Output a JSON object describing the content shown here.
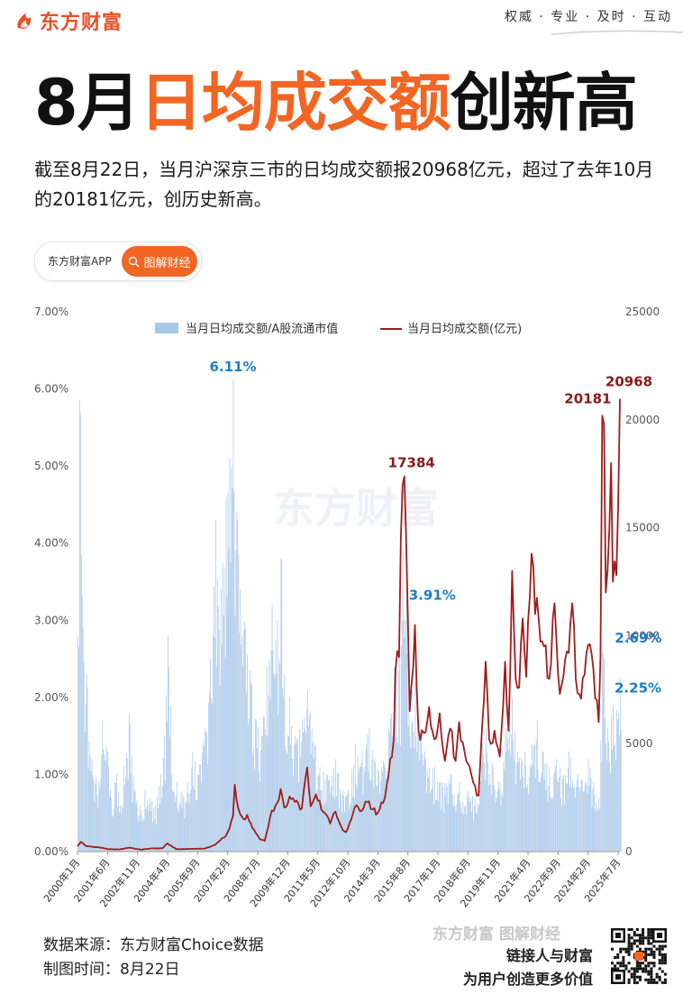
{
  "brand": {
    "name": "东方财富",
    "logo_icon": "flame-logo-icon",
    "color": "#e8502b"
  },
  "slogan": "权威 · 专业 · 及时 · 互动",
  "headline": {
    "part1": "8月",
    "part2": "日均成交额",
    "part3": "创新高",
    "accent_color": "#f26522"
  },
  "intro": "截至8月22日，当月沪深京三市的日均成交额报20968亿元，超过了去年10月的20181亿元，创历史新高。",
  "pill": {
    "label": "东方财富APP",
    "button_label": "图解财经",
    "button_icon": "search-icon"
  },
  "chart_data": {
    "type": "bar+line",
    "legend_placement": "top-center",
    "watermark": "东方财富",
    "y_left": {
      "ticks": [
        "0.00%",
        "1.00%",
        "2.00%",
        "3.00%",
        "4.00%",
        "5.00%",
        "6.00%",
        "7.00%"
      ],
      "range": [
        0,
        7
      ]
    },
    "y_right": {
      "ticks": [
        "0",
        "5000",
        "10000",
        "15000",
        "20000",
        "25000"
      ],
      "range": [
        0,
        25000
      ]
    },
    "x_start": "2000-01",
    "x_end": "2025-08",
    "x_ticks": [
      "2000年1月",
      "2001年6月",
      "2002年11月",
      "2004年4月",
      "2005年9月",
      "2007年2月",
      "2008年7月",
      "2009年12月",
      "2011年5月",
      "2012年10月",
      "2014年3月",
      "2015年8月",
      "2017年1月",
      "2018年6月",
      "2019年11月",
      "2021年4月",
      "2022年9月",
      "2024年2月",
      "2025年7月"
    ],
    "series": [
      {
        "name": "当月日均成交额/A股流通市值",
        "type": "bar",
        "color": "#a9c8e8",
        "anchors": [
          [
            "2000-01",
            2.8
          ],
          [
            "2000-02",
            5.85
          ],
          [
            "2000-03",
            3.85
          ],
          [
            "2000-04",
            2.9
          ],
          [
            "2000-06",
            2.3
          ],
          [
            "2000-09",
            1.2
          ],
          [
            "2001-01",
            0.9
          ],
          [
            "2001-03",
            1.7
          ],
          [
            "2001-06",
            1.3
          ],
          [
            "2001-08",
            0.7
          ],
          [
            "2001-11",
            1.0
          ],
          [
            "2002-01",
            0.6
          ],
          [
            "2002-03",
            1.1
          ],
          [
            "2002-06",
            1.8
          ],
          [
            "2002-09",
            0.8
          ],
          [
            "2002-12",
            0.6
          ],
          [
            "2003-03",
            0.8
          ],
          [
            "2003-06",
            0.7
          ],
          [
            "2003-09",
            0.6
          ],
          [
            "2003-12",
            1.0
          ],
          [
            "2004-02",
            1.5
          ],
          [
            "2004-04",
            2.8
          ],
          [
            "2004-06",
            1.0
          ],
          [
            "2004-09",
            0.9
          ],
          [
            "2005-01",
            0.7
          ],
          [
            "2005-06",
            1.3
          ],
          [
            "2005-09",
            1.0
          ],
          [
            "2006-01",
            1.6
          ],
          [
            "2006-04",
            2.5
          ],
          [
            "2006-07",
            4.3
          ],
          [
            "2006-10",
            3.4
          ],
          [
            "2007-01",
            4.6
          ],
          [
            "2007-03",
            5.1
          ],
          [
            "2007-05",
            6.11
          ],
          [
            "2007-07",
            4.4
          ],
          [
            "2007-09",
            3.4
          ],
          [
            "2007-12",
            2.9
          ],
          [
            "2008-03",
            2.2
          ],
          [
            "2008-06",
            1.7
          ],
          [
            "2008-09",
            1.5
          ],
          [
            "2008-12",
            2.4
          ],
          [
            "2009-03",
            3.2
          ],
          [
            "2009-06",
            3.0
          ],
          [
            "2009-08",
            3.8
          ],
          [
            "2009-10",
            2.3
          ],
          [
            "2010-01",
            2.0
          ],
          [
            "2010-04",
            1.5
          ],
          [
            "2010-08",
            1.7
          ],
          [
            "2010-11",
            2.1
          ],
          [
            "2011-03",
            1.4
          ],
          [
            "2011-06",
            1.1
          ],
          [
            "2011-10",
            1.0
          ],
          [
            "2012-03",
            1.2
          ],
          [
            "2012-07",
            0.8
          ],
          [
            "2012-10",
            0.8
          ],
          [
            "2013-02",
            1.4
          ],
          [
            "2013-06",
            1.3
          ],
          [
            "2013-10",
            1.6
          ],
          [
            "2014-01",
            1.2
          ],
          [
            "2014-05",
            1.1
          ],
          [
            "2014-09",
            1.6
          ],
          [
            "2014-12",
            2.4
          ],
          [
            "2015-03",
            2.5
          ],
          [
            "2015-05",
            3.91
          ],
          [
            "2015-07",
            3.3
          ],
          [
            "2015-09",
            1.5
          ],
          [
            "2015-12",
            2.2
          ],
          [
            "2016-03",
            1.6
          ],
          [
            "2016-06",
            1.2
          ],
          [
            "2016-11",
            1.1
          ],
          [
            "2017-03",
            0.9
          ],
          [
            "2017-08",
            1.0
          ],
          [
            "2018-01",
            0.9
          ],
          [
            "2018-06",
            0.8
          ],
          [
            "2018-10",
            0.7
          ],
          [
            "2019-02",
            1.4
          ],
          [
            "2019-04",
            1.6
          ],
          [
            "2019-08",
            1.1
          ],
          [
            "2019-12",
            0.9
          ],
          [
            "2020-03",
            1.6
          ],
          [
            "2020-07",
            2.0
          ],
          [
            "2020-10",
            1.3
          ],
          [
            "2021-02",
            1.3
          ],
          [
            "2021-06",
            1.4
          ],
          [
            "2021-09",
            1.7
          ],
          [
            "2021-12",
            1.3
          ],
          [
            "2022-04",
            1.1
          ],
          [
            "2022-08",
            1.2
          ],
          [
            "2022-12",
            1.0
          ],
          [
            "2023-03",
            1.3
          ],
          [
            "2023-08",
            1.0
          ],
          [
            "2023-12",
            0.9
          ],
          [
            "2024-02",
            1.2
          ],
          [
            "2024-05",
            0.9
          ],
          [
            "2024-08",
            0.7
          ],
          [
            "2024-10",
            2.69
          ],
          [
            "2024-11",
            2.5
          ],
          [
            "2025-01",
            1.6
          ],
          [
            "2025-04",
            1.9
          ],
          [
            "2025-07",
            1.8
          ],
          [
            "2025-08",
            2.25
          ]
        ]
      },
      {
        "name": "当月日均成交额(亿元)",
        "type": "line",
        "color": "#a01c1c",
        "anchors": [
          [
            "2000-01",
            250
          ],
          [
            "2000-03",
            450
          ],
          [
            "2000-06",
            250
          ],
          [
            "2001-01",
            200
          ],
          [
            "2001-06",
            120
          ],
          [
            "2002-01",
            100
          ],
          [
            "2002-06",
            180
          ],
          [
            "2003-01",
            90
          ],
          [
            "2003-06",
            140
          ],
          [
            "2004-01",
            150
          ],
          [
            "2004-04",
            380
          ],
          [
            "2004-09",
            110
          ],
          [
            "2005-06",
            130
          ],
          [
            "2006-01",
            140
          ],
          [
            "2006-07",
            320
          ],
          [
            "2006-12",
            650
          ],
          [
            "2007-02",
            900
          ],
          [
            "2007-05",
            1650
          ],
          [
            "2007-06",
            3100
          ],
          [
            "2007-08",
            2000
          ],
          [
            "2007-11",
            1500
          ],
          [
            "2008-01",
            1700
          ],
          [
            "2008-04",
            1100
          ],
          [
            "2008-08",
            600
          ],
          [
            "2008-11",
            500
          ],
          [
            "2009-01",
            1150
          ],
          [
            "2009-03",
            1900
          ],
          [
            "2009-06",
            2250
          ],
          [
            "2009-08",
            2900
          ],
          [
            "2009-10",
            2050
          ],
          [
            "2010-01",
            2550
          ],
          [
            "2010-04",
            2300
          ],
          [
            "2010-08",
            2000
          ],
          [
            "2010-11",
            3900
          ],
          [
            "2011-01",
            2100
          ],
          [
            "2011-04",
            2650
          ],
          [
            "2011-08",
            1850
          ],
          [
            "2011-12",
            1300
          ],
          [
            "2012-03",
            1850
          ],
          [
            "2012-06",
            1200
          ],
          [
            "2012-09",
            900
          ],
          [
            "2012-12",
            1500
          ],
          [
            "2013-03",
            2150
          ],
          [
            "2013-06",
            1900
          ],
          [
            "2013-09",
            2300
          ],
          [
            "2013-12",
            1950
          ],
          [
            "2014-03",
            1800
          ],
          [
            "2014-07",
            2500
          ],
          [
            "2014-09",
            3500
          ],
          [
            "2014-12",
            5200
          ],
          [
            "2015-01",
            8400
          ],
          [
            "2015-03",
            9000
          ],
          [
            "2015-04",
            14500
          ],
          [
            "2015-06",
            17384
          ],
          [
            "2015-07",
            14500
          ],
          [
            "2015-09",
            6500
          ],
          [
            "2015-12",
            10500
          ],
          [
            "2016-02",
            5600
          ],
          [
            "2016-05",
            5500
          ],
          [
            "2016-08",
            6700
          ],
          [
            "2016-11",
            5200
          ],
          [
            "2017-02",
            6400
          ],
          [
            "2017-05",
            4200
          ],
          [
            "2017-08",
            5700
          ],
          [
            "2017-11",
            4200
          ],
          [
            "2018-01",
            6000
          ],
          [
            "2018-05",
            4200
          ],
          [
            "2018-09",
            3200
          ],
          [
            "2018-12",
            2600
          ],
          [
            "2019-02",
            5800
          ],
          [
            "2019-04",
            8800
          ],
          [
            "2019-06",
            5200
          ],
          [
            "2019-09",
            5600
          ],
          [
            "2019-12",
            4400
          ],
          [
            "2020-03",
            8800
          ],
          [
            "2020-05",
            5600
          ],
          [
            "2020-07",
            13000
          ],
          [
            "2020-09",
            8000
          ],
          [
            "2020-11",
            7600
          ],
          [
            "2021-01",
            10800
          ],
          [
            "2021-03",
            8100
          ],
          [
            "2021-05",
            11800
          ],
          [
            "2021-06",
            13800
          ],
          [
            "2021-08",
            11000
          ],
          [
            "2021-10",
            10800
          ],
          [
            "2022-01",
            9500
          ],
          [
            "2022-04",
            8000
          ],
          [
            "2022-07",
            11500
          ],
          [
            "2022-10",
            7300
          ],
          [
            "2023-01",
            8900
          ],
          [
            "2023-03",
            9200
          ],
          [
            "2023-05",
            11500
          ],
          [
            "2023-07",
            8000
          ],
          [
            "2023-09",
            7300
          ],
          [
            "2023-12",
            8200
          ],
          [
            "2024-03",
            9600
          ],
          [
            "2024-06",
            7100
          ],
          [
            "2024-08",
            6000
          ],
          [
            "2024-09",
            9000
          ],
          [
            "2024-10",
            20181
          ],
          [
            "2024-11",
            19800
          ],
          [
            "2024-12",
            12000
          ],
          [
            "2025-01",
            13000
          ],
          [
            "2025-03",
            18000
          ],
          [
            "2025-04",
            12500
          ],
          [
            "2025-06",
            12800
          ],
          [
            "2025-07",
            16000
          ],
          [
            "2025-08",
            20968
          ]
        ]
      }
    ],
    "annotations": [
      {
        "text": "6.11%",
        "series": 0,
        "x": "2007-05",
        "color": "#1a7fc4"
      },
      {
        "text": "3.91%",
        "series": 0,
        "x": "2015-05",
        "color": "#1a7fc4"
      },
      {
        "text": "2.69%",
        "series": 0,
        "x": "2024-10",
        "color": "#1a7fc4"
      },
      {
        "text": "2.25%",
        "series": 0,
        "x": "2025-08",
        "color": "#1a7fc4"
      },
      {
        "text": "17384",
        "series": 1,
        "x": "2015-06",
        "color": "#8b1a1a"
      },
      {
        "text": "20181",
        "series": 1,
        "x": "2024-10",
        "color": "#8b1a1a"
      },
      {
        "text": "20968",
        "series": 1,
        "x": "2025-08",
        "color": "#8b1a1a"
      }
    ]
  },
  "footer": {
    "source": "数据来源：东方财富Choice数据",
    "date": "制图时间：8月22日",
    "logo_text_1": "东方财富",
    "logo_text_2": "图解财经",
    "tagline_1": "链接人与财富",
    "tagline_2": "为用户创造更多价值",
    "qr_icon": "qr-code-icon"
  }
}
